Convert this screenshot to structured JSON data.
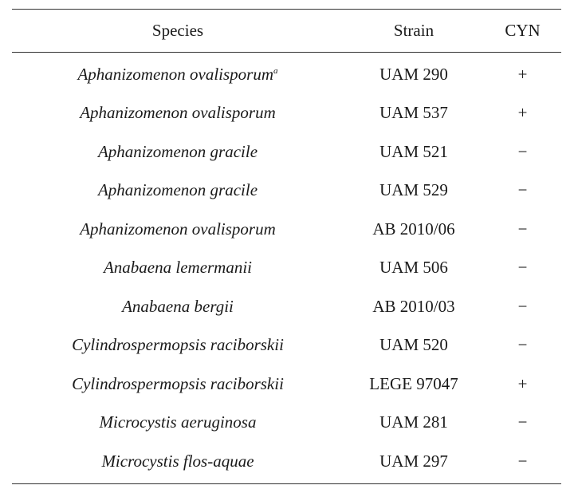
{
  "table": {
    "headers": {
      "species": "Species",
      "strain": "Strain",
      "cyn": "CYN"
    },
    "rows": [
      {
        "species": "Aphanizomenon ovalisporum",
        "footnote": "a",
        "strain": "UAM 290",
        "cyn": "+"
      },
      {
        "species": "Aphanizomenon ovalisporum",
        "footnote": "",
        "strain": "UAM 537",
        "cyn": "+"
      },
      {
        "species": "Aphanizomenon gracile",
        "footnote": "",
        "strain": "UAM 521",
        "cyn": "−"
      },
      {
        "species": "Aphanizomenon gracile",
        "footnote": "",
        "strain": "UAM 529",
        "cyn": "−"
      },
      {
        "species": "Aphanizomenon ovalisporum",
        "footnote": "",
        "strain": "AB 2010/06",
        "cyn": "−"
      },
      {
        "species": "Anabaena lemermanii",
        "footnote": "",
        "strain": "UAM 506",
        "cyn": "−"
      },
      {
        "species": "Anabaena bergii",
        "footnote": "",
        "strain": "AB 2010/03",
        "cyn": "−"
      },
      {
        "species": "Cylindrospermopsis raciborskii",
        "footnote": "",
        "strain": "UAM 520",
        "cyn": "−"
      },
      {
        "species": "Cylindrospermopsis raciborskii",
        "footnote": "",
        "strain": "LEGE 97047",
        "cyn": "+"
      },
      {
        "species": "Microcystis aeruginosa",
        "footnote": "",
        "strain": "UAM 281",
        "cyn": "−"
      },
      {
        "species": "Microcystis flos-aquae",
        "footnote": "",
        "strain": "UAM 297",
        "cyn": "−"
      }
    ]
  }
}
